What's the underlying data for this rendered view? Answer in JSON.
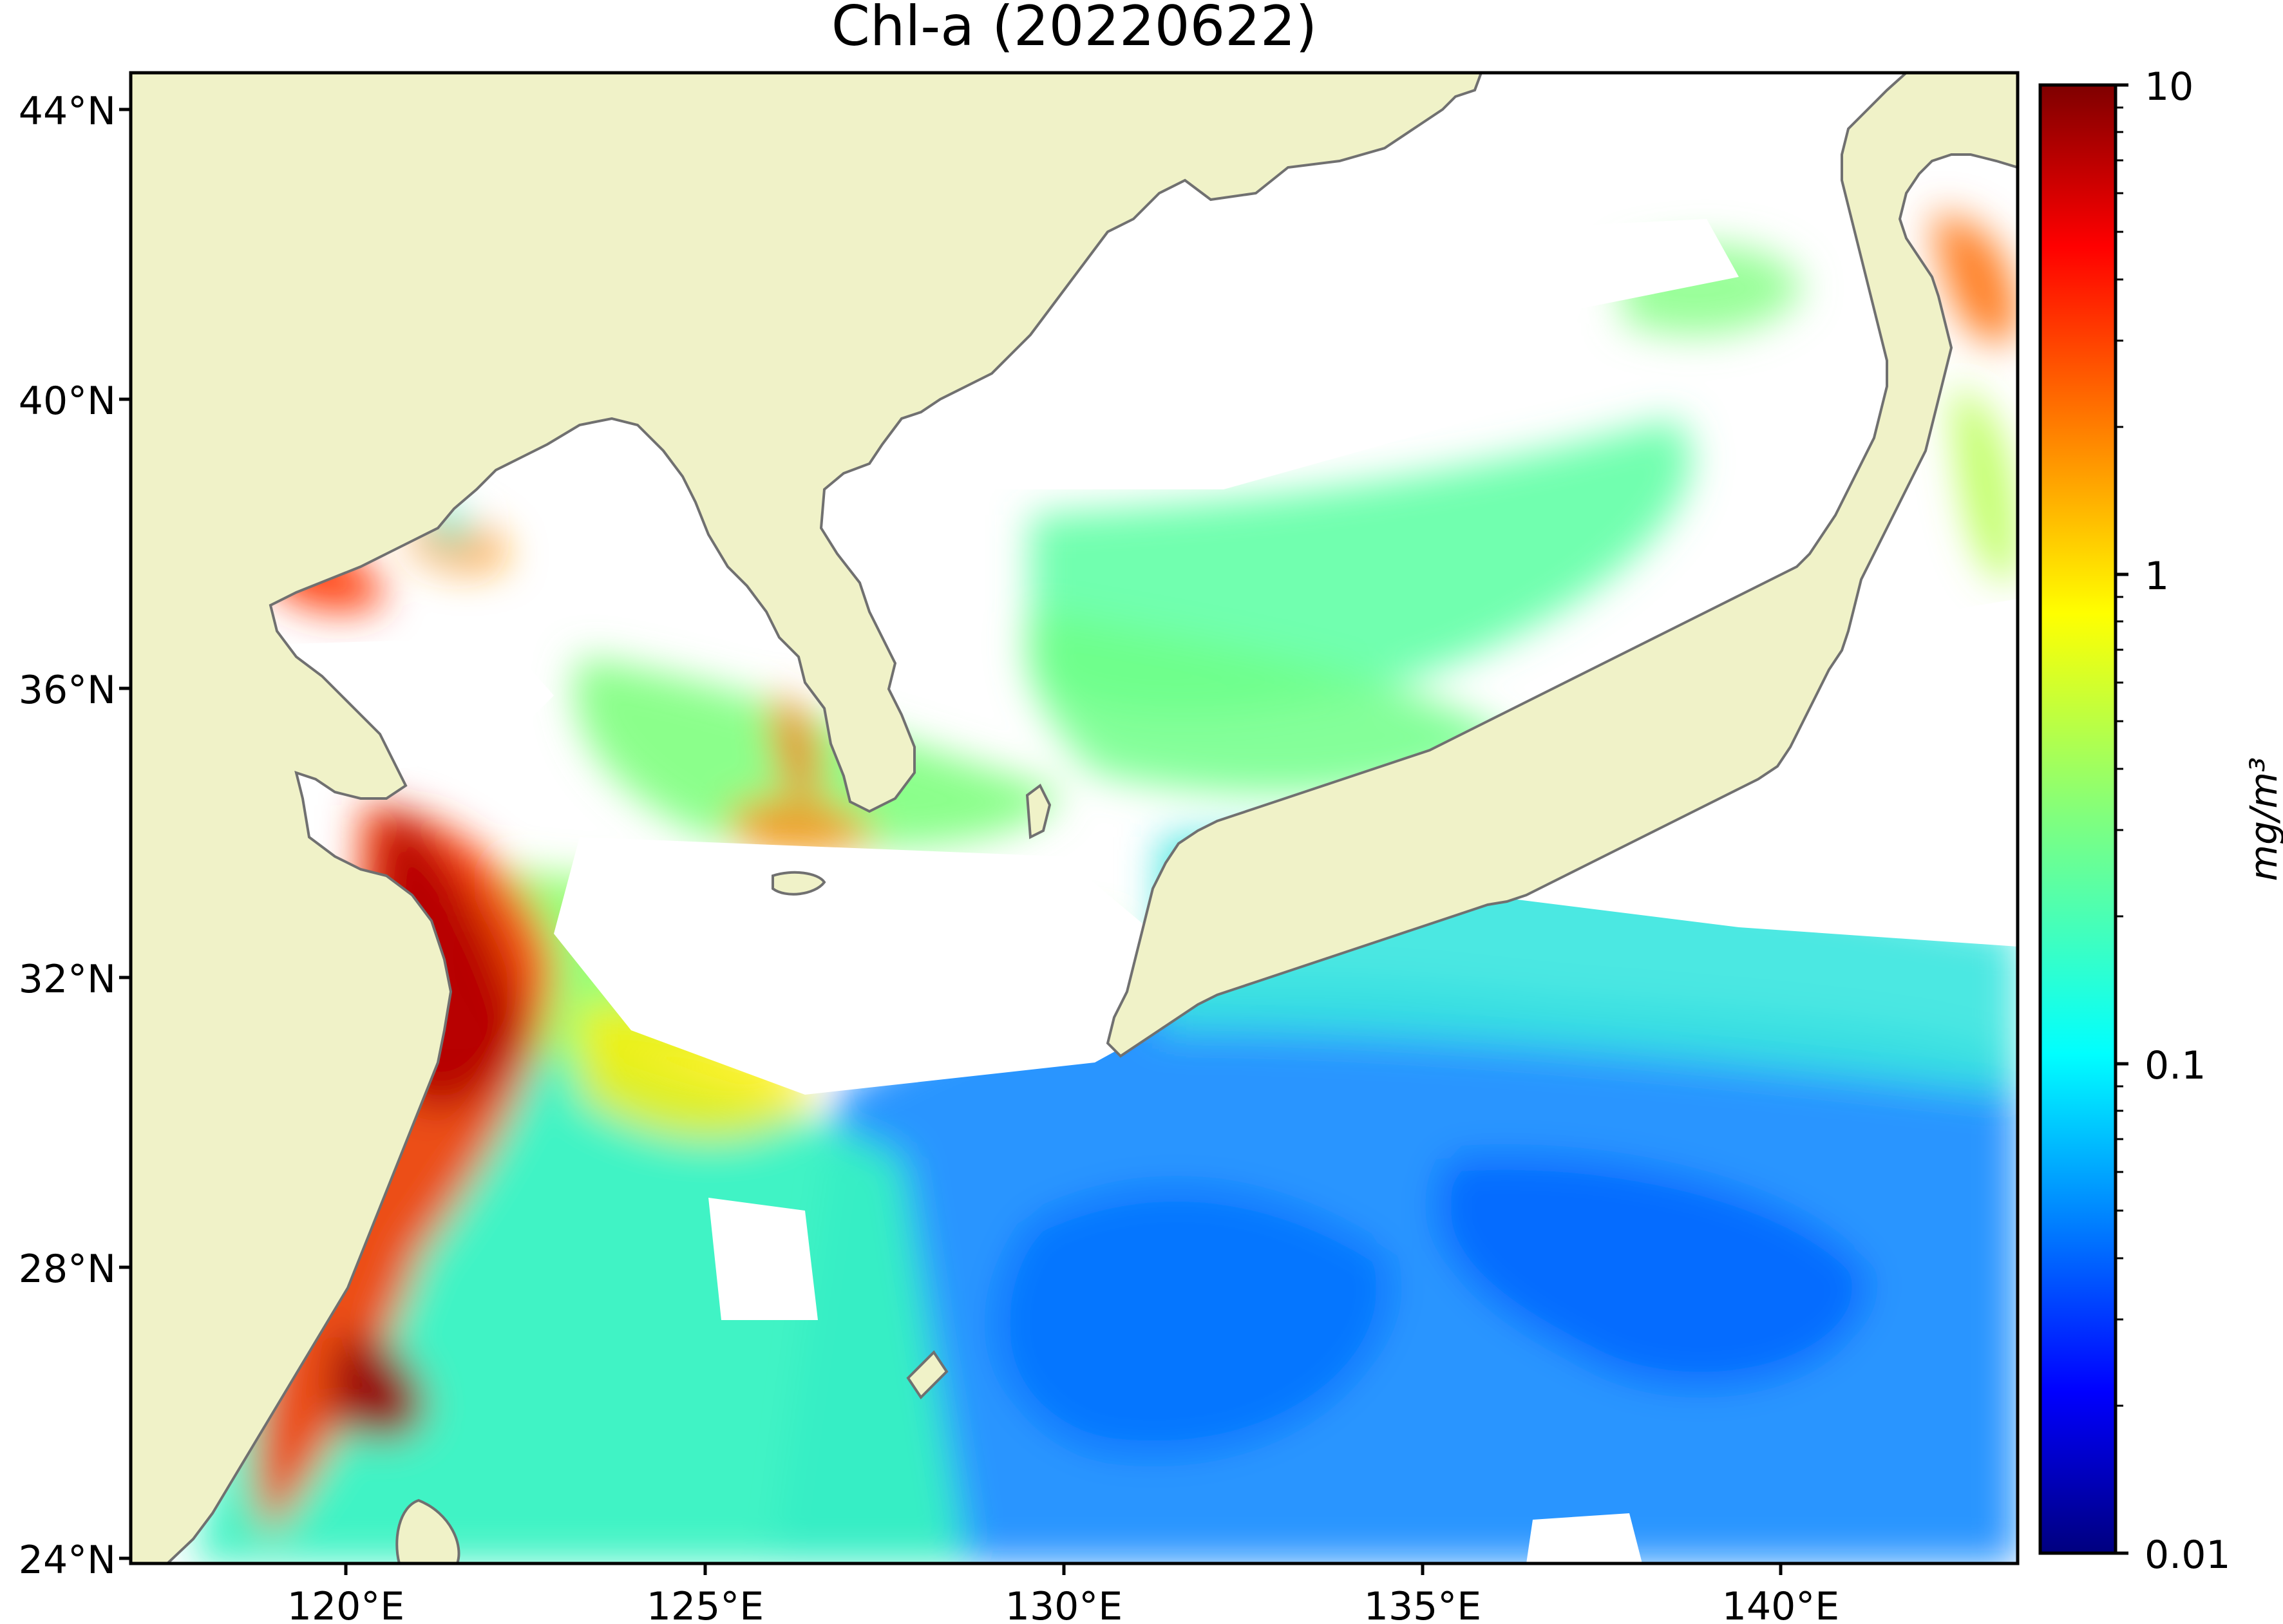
{
  "map": {
    "title": "Chl-a (20220622)",
    "lon_range": [
      117,
      143.3
    ],
    "lat_range": [
      24,
      44.6
    ],
    "lat_ticks": [
      {
        "value": 44,
        "label": "44°N"
      },
      {
        "value": 40,
        "label": "40°N"
      },
      {
        "value": 36,
        "label": "36°N"
      },
      {
        "value": 32,
        "label": "32°N"
      },
      {
        "value": 28,
        "label": "28°N"
      },
      {
        "value": 24,
        "label": "24°N"
      }
    ],
    "lon_ticks": [
      {
        "value": 120,
        "label": "120°E"
      },
      {
        "value": 125,
        "label": "125°E"
      },
      {
        "value": 130,
        "label": "130°E"
      },
      {
        "value": 135,
        "label": "135°E"
      },
      {
        "value": 140,
        "label": "140°E"
      }
    ],
    "colors": {
      "land": "#f0f2c8",
      "coast": "#707070",
      "no_data": "#ffffff"
    }
  },
  "colorbar": {
    "label": "mg/m³",
    "scale": "log",
    "range": [
      0.01,
      10
    ],
    "major_ticks": [
      {
        "value": 10,
        "label": "10"
      },
      {
        "value": 1,
        "label": "1"
      },
      {
        "value": 0.1,
        "label": "0.1"
      },
      {
        "value": 0.01,
        "label": "0.01"
      }
    ],
    "colormap": "jet",
    "colormap_colors": [
      "#00007f",
      "#0000ff",
      "#007fff",
      "#00ffff",
      "#7fff7f",
      "#ffff00",
      "#ff7f00",
      "#ff0000",
      "#7f0000"
    ]
  }
}
